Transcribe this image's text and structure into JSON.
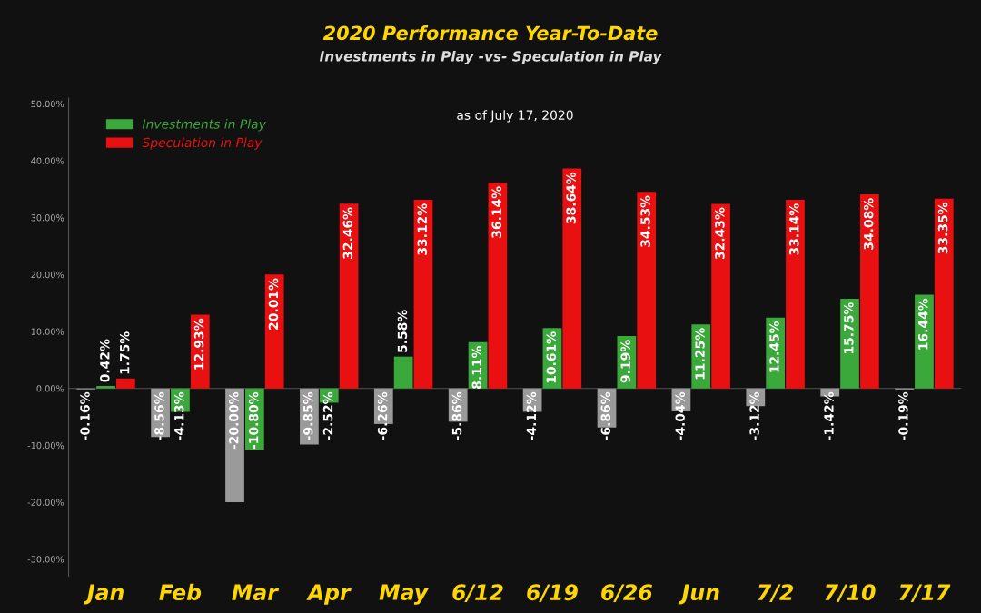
{
  "chart_data": {
    "type": "bar",
    "title": "2020 Performance Year-To-Date",
    "subtitle": "Investments in Play -vs- Speculation in Play",
    "annotations": [
      "as of July 17, 2020"
    ],
    "categories": [
      "Jan",
      "Feb",
      "Mar",
      "Apr",
      "May",
      "6/12",
      "6/19",
      "6/26",
      "Jun",
      "7/2",
      "7/10",
      "7/17"
    ],
    "series": [
      {
        "color": "#9a9a9a",
        "values": [
          -0.16,
          -8.56,
          -20.0,
          -9.85,
          -6.26,
          -5.86,
          -4.12,
          -6.86,
          -4.04,
          -3.12,
          -1.42,
          -0.19
        ],
        "value_labels": [
          "-0.16%",
          "-8.56%",
          "-20.00%",
          "-9.85%",
          "-6.26%",
          "-5.86%",
          "-4.12%",
          "-6.86%",
          "-4.04%",
          "-3.12%",
          "-1.42%",
          "-0.19%"
        ]
      },
      {
        "name": "Investments in Play",
        "color": "#3aa83a",
        "values": [
          0.42,
          -4.13,
          -10.8,
          -2.52,
          5.58,
          8.11,
          10.61,
          9.19,
          11.25,
          12.45,
          15.75,
          16.44
        ],
        "value_labels": [
          "0.42%",
          "-4.13%",
          "-10.80%",
          "-2.52%",
          "5.58%",
          "8.11%",
          "10.61%",
          "9.19%",
          "11.25%",
          "12.45%",
          "15.75%",
          "16.44%"
        ]
      },
      {
        "name": "Speculation in Play",
        "color": "#e81010",
        "values": [
          1.75,
          12.93,
          20.01,
          32.46,
          33.12,
          36.14,
          38.64,
          34.53,
          32.43,
          33.14,
          34.08,
          33.35
        ],
        "value_labels": [
          "1.75%",
          "12.93%",
          "20.01%",
          "32.46%",
          "33.12%",
          "36.14%",
          "38.64%",
          "34.53%",
          "32.43%",
          "33.14%",
          "34.08%",
          "33.35%"
        ]
      }
    ],
    "ylim": [
      -33,
      51
    ],
    "yticks": [
      {
        "value": -30,
        "label": "-30.00%"
      },
      {
        "value": -20,
        "label": "-20.00%"
      },
      {
        "value": -10,
        "label": "-10.00%"
      },
      {
        "value": 0,
        "label": "0.00%"
      },
      {
        "value": 10,
        "label": "10.00%"
      },
      {
        "value": 20,
        "label": "20.00%"
      },
      {
        "value": 30,
        "label": "30.00%"
      },
      {
        "value": 40,
        "label": "40.00%"
      },
      {
        "value": 50,
        "label": "50.00%"
      }
    ],
    "legend": "top left"
  }
}
